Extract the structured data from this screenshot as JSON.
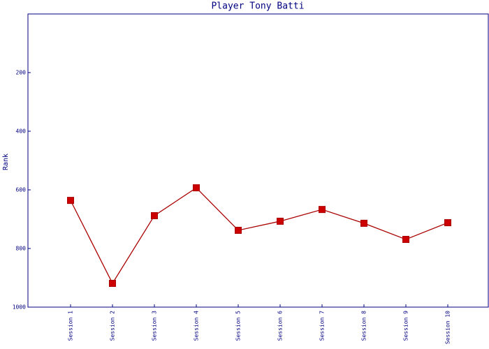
{
  "chart_data": {
    "type": "line",
    "title": "Player Tony Batti",
    "y_label": "Rank",
    "categories": [
      "Session 1",
      "Session 2",
      "Session 3",
      "Session 4",
      "Session 5",
      "Session 6",
      "Session 7",
      "Session 8",
      "Session 9",
      "Session 10"
    ],
    "series": [
      {
        "name": "Rank",
        "color": "#aa0000",
        "marker_color": "#cc0000",
        "values": [
          636,
          919,
          688,
          593,
          738,
          707,
          667,
          714,
          769,
          712
        ]
      }
    ],
    "ylim": [
      1000,
      0
    ],
    "yticks": [
      200,
      400,
      600,
      800,
      1000
    ],
    "grid": false
  }
}
